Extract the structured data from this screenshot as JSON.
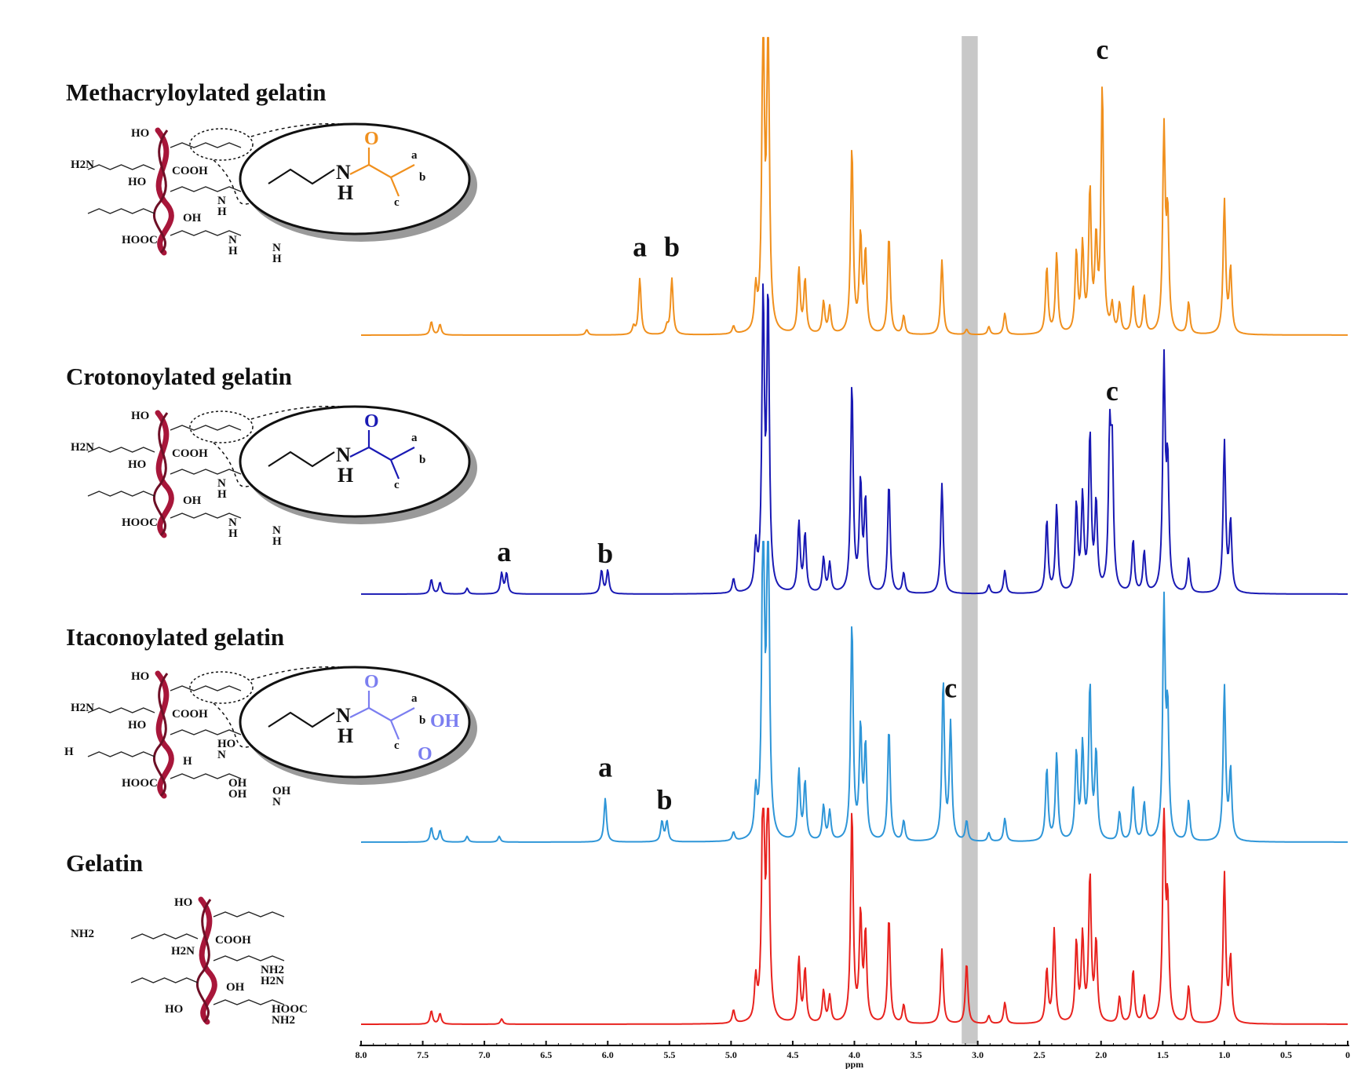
{
  "chart_data": {
    "type": "line",
    "title": "",
    "xlabel": "ppm",
    "ylabel": "",
    "x_reversed": true,
    "xlim": [
      8.0,
      0
    ],
    "ticks": [
      "8.0",
      "7.5",
      "7.0",
      "6.5",
      "6.0",
      "5.5",
      "5.0",
      "4.5",
      "4.0",
      "3.5",
      "3.0",
      "2.5",
      "2.0",
      "1.5",
      "1.0",
      "0.5",
      "0"
    ],
    "highlight_band_ppm": [
      3.0,
      3.13
    ],
    "highlight_color": "#c8c8c8",
    "series": [
      {
        "name": "Methacryloylated gelatin",
        "color": "#f0901e",
        "ring_label": "N-H amide with C=O, CH2=C(CH3)-",
        "peak_labels": [
          {
            "label": "a",
            "ppm": 5.74
          },
          {
            "label": "b",
            "ppm": 5.48
          },
          {
            "label": "c",
            "ppm": 1.99
          }
        ],
        "peaks": [
          {
            "ppm": 7.43,
            "h": 0.05
          },
          {
            "ppm": 7.36,
            "h": 0.04
          },
          {
            "ppm": 6.17,
            "h": 0.02
          },
          {
            "ppm": 5.79,
            "h": 0.03
          },
          {
            "ppm": 5.74,
            "h": 0.21
          },
          {
            "ppm": 5.52,
            "h": 0.03
          },
          {
            "ppm": 5.48,
            "h": 0.21
          },
          {
            "ppm": 4.98,
            "h": 0.03
          },
          {
            "ppm": 4.8,
            "h": 0.15
          },
          {
            "ppm": 4.74,
            "h": 1.2
          },
          {
            "ppm": 4.7,
            "h": 1.2
          },
          {
            "ppm": 4.45,
            "h": 0.24
          },
          {
            "ppm": 4.4,
            "h": 0.2
          },
          {
            "ppm": 4.25,
            "h": 0.12
          },
          {
            "ppm": 4.2,
            "h": 0.1
          },
          {
            "ppm": 4.02,
            "h": 0.7
          },
          {
            "ppm": 3.95,
            "h": 0.36
          },
          {
            "ppm": 3.91,
            "h": 0.3
          },
          {
            "ppm": 3.72,
            "h": 0.37
          },
          {
            "ppm": 3.6,
            "h": 0.07
          },
          {
            "ppm": 3.29,
            "h": 0.28
          },
          {
            "ppm": 3.09,
            "h": 0.02
          },
          {
            "ppm": 2.91,
            "h": 0.03
          },
          {
            "ppm": 2.78,
            "h": 0.08
          },
          {
            "ppm": 2.44,
            "h": 0.25
          },
          {
            "ppm": 2.36,
            "h": 0.3
          },
          {
            "ppm": 2.2,
            "h": 0.3
          },
          {
            "ppm": 2.15,
            "h": 0.32
          },
          {
            "ppm": 2.09,
            "h": 0.53
          },
          {
            "ppm": 2.04,
            "h": 0.33
          },
          {
            "ppm": 1.99,
            "h": 0.92
          },
          {
            "ppm": 1.91,
            "h": 0.1
          },
          {
            "ppm": 1.85,
            "h": 0.11
          },
          {
            "ppm": 1.74,
            "h": 0.18
          },
          {
            "ppm": 1.65,
            "h": 0.14
          },
          {
            "ppm": 1.49,
            "h": 0.75
          },
          {
            "ppm": 1.46,
            "h": 0.42
          },
          {
            "ppm": 1.29,
            "h": 0.12
          },
          {
            "ppm": 1.0,
            "h": 0.5
          },
          {
            "ppm": 0.95,
            "h": 0.24
          }
        ]
      },
      {
        "name": "Crotonoylated gelatin",
        "color": "#1a1ab4",
        "peak_labels": [
          {
            "label": "a",
            "ppm": 6.84
          },
          {
            "label": "b",
            "ppm": 6.02
          },
          {
            "label": "c",
            "ppm": 1.91
          }
        ],
        "peaks": [
          {
            "ppm": 7.43,
            "h": 0.05
          },
          {
            "ppm": 7.36,
            "h": 0.04
          },
          {
            "ppm": 7.14,
            "h": 0.02
          },
          {
            "ppm": 6.86,
            "h": 0.07
          },
          {
            "ppm": 6.82,
            "h": 0.07
          },
          {
            "ppm": 6.05,
            "h": 0.08
          },
          {
            "ppm": 6.0,
            "h": 0.08
          },
          {
            "ppm": 4.98,
            "h": 0.05
          },
          {
            "ppm": 4.8,
            "h": 0.15
          },
          {
            "ppm": 4.74,
            "h": 1.0
          },
          {
            "ppm": 4.7,
            "h": 1.0
          },
          {
            "ppm": 4.45,
            "h": 0.24
          },
          {
            "ppm": 4.4,
            "h": 0.2
          },
          {
            "ppm": 4.25,
            "h": 0.12
          },
          {
            "ppm": 4.2,
            "h": 0.1
          },
          {
            "ppm": 4.02,
            "h": 0.72
          },
          {
            "ppm": 3.95,
            "h": 0.37
          },
          {
            "ppm": 3.91,
            "h": 0.31
          },
          {
            "ppm": 3.72,
            "h": 0.38
          },
          {
            "ppm": 3.6,
            "h": 0.07
          },
          {
            "ppm": 3.29,
            "h": 0.38
          },
          {
            "ppm": 2.91,
            "h": 0.03
          },
          {
            "ppm": 2.78,
            "h": 0.08
          },
          {
            "ppm": 2.44,
            "h": 0.25
          },
          {
            "ppm": 2.36,
            "h": 0.3
          },
          {
            "ppm": 2.2,
            "h": 0.3
          },
          {
            "ppm": 2.15,
            "h": 0.32
          },
          {
            "ppm": 2.09,
            "h": 0.54
          },
          {
            "ppm": 2.04,
            "h": 0.3
          },
          {
            "ppm": 1.93,
            "h": 0.5
          },
          {
            "ppm": 1.91,
            "h": 0.45
          },
          {
            "ppm": 1.74,
            "h": 0.18
          },
          {
            "ppm": 1.65,
            "h": 0.14
          },
          {
            "ppm": 1.49,
            "h": 0.78
          },
          {
            "ppm": 1.46,
            "h": 0.42
          },
          {
            "ppm": 1.29,
            "h": 0.12
          },
          {
            "ppm": 1.0,
            "h": 0.52
          },
          {
            "ppm": 0.95,
            "h": 0.24
          }
        ]
      },
      {
        "name": "Itaconoylated gelatin",
        "color": "#2f96d8",
        "peak_labels": [
          {
            "label": "a",
            "ppm": 6.02
          },
          {
            "label": "b",
            "ppm": 5.54
          },
          {
            "label": "c",
            "ppm": 3.22
          }
        ],
        "peaks": [
          {
            "ppm": 7.43,
            "h": 0.05
          },
          {
            "ppm": 7.36,
            "h": 0.04
          },
          {
            "ppm": 7.14,
            "h": 0.02
          },
          {
            "ppm": 6.88,
            "h": 0.02
          },
          {
            "ppm": 6.02,
            "h": 0.15
          },
          {
            "ppm": 5.56,
            "h": 0.07
          },
          {
            "ppm": 5.52,
            "h": 0.07
          },
          {
            "ppm": 4.98,
            "h": 0.03
          },
          {
            "ppm": 4.8,
            "h": 0.15
          },
          {
            "ppm": 4.74,
            "h": 1.2
          },
          {
            "ppm": 4.7,
            "h": 1.2
          },
          {
            "ppm": 4.45,
            "h": 0.24
          },
          {
            "ppm": 4.4,
            "h": 0.2
          },
          {
            "ppm": 4.25,
            "h": 0.12
          },
          {
            "ppm": 4.2,
            "h": 0.1
          },
          {
            "ppm": 4.02,
            "h": 0.75
          },
          {
            "ppm": 3.95,
            "h": 0.38
          },
          {
            "ppm": 3.91,
            "h": 0.32
          },
          {
            "ppm": 3.72,
            "h": 0.39
          },
          {
            "ppm": 3.6,
            "h": 0.07
          },
          {
            "ppm": 3.28,
            "h": 0.55
          },
          {
            "ppm": 3.22,
            "h": 0.4
          },
          {
            "ppm": 3.09,
            "h": 0.07
          },
          {
            "ppm": 2.91,
            "h": 0.03
          },
          {
            "ppm": 2.78,
            "h": 0.08
          },
          {
            "ppm": 2.44,
            "h": 0.25
          },
          {
            "ppm": 2.36,
            "h": 0.3
          },
          {
            "ppm": 2.2,
            "h": 0.3
          },
          {
            "ppm": 2.15,
            "h": 0.32
          },
          {
            "ppm": 2.09,
            "h": 0.53
          },
          {
            "ppm": 2.04,
            "h": 0.3
          },
          {
            "ppm": 1.85,
            "h": 0.1
          },
          {
            "ppm": 1.74,
            "h": 0.19
          },
          {
            "ppm": 1.65,
            "h": 0.13
          },
          {
            "ppm": 1.49,
            "h": 0.8
          },
          {
            "ppm": 1.46,
            "h": 0.42
          },
          {
            "ppm": 1.29,
            "h": 0.14
          },
          {
            "ppm": 1.0,
            "h": 0.53
          },
          {
            "ppm": 0.95,
            "h": 0.24
          }
        ]
      },
      {
        "name": "Gelatin",
        "color": "#e8231f",
        "peak_labels": [],
        "peaks": [
          {
            "ppm": 7.43,
            "h": 0.05
          },
          {
            "ppm": 7.36,
            "h": 0.04
          },
          {
            "ppm": 6.86,
            "h": 0.02
          },
          {
            "ppm": 4.98,
            "h": 0.05
          },
          {
            "ppm": 4.8,
            "h": 0.15
          },
          {
            "ppm": 4.74,
            "h": 1.0
          },
          {
            "ppm": 4.7,
            "h": 1.0
          },
          {
            "ppm": 4.45,
            "h": 0.24
          },
          {
            "ppm": 4.4,
            "h": 0.2
          },
          {
            "ppm": 4.25,
            "h": 0.12
          },
          {
            "ppm": 4.2,
            "h": 0.1
          },
          {
            "ppm": 4.02,
            "h": 0.8
          },
          {
            "ppm": 3.95,
            "h": 0.4
          },
          {
            "ppm": 3.91,
            "h": 0.33
          },
          {
            "ppm": 3.72,
            "h": 0.4
          },
          {
            "ppm": 3.6,
            "h": 0.07
          },
          {
            "ppm": 3.29,
            "h": 0.28
          },
          {
            "ppm": 3.09,
            "h": 0.23
          },
          {
            "ppm": 2.91,
            "h": 0.03
          },
          {
            "ppm": 2.78,
            "h": 0.08
          },
          {
            "ppm": 2.44,
            "h": 0.2
          },
          {
            "ppm": 2.38,
            "h": 0.35
          },
          {
            "ppm": 2.2,
            "h": 0.3
          },
          {
            "ppm": 2.15,
            "h": 0.32
          },
          {
            "ppm": 2.09,
            "h": 0.55
          },
          {
            "ppm": 2.04,
            "h": 0.3
          },
          {
            "ppm": 1.85,
            "h": 0.1
          },
          {
            "ppm": 1.74,
            "h": 0.2
          },
          {
            "ppm": 1.65,
            "h": 0.1
          },
          {
            "ppm": 1.49,
            "h": 0.82
          },
          {
            "ppm": 1.46,
            "h": 0.42
          },
          {
            "ppm": 1.29,
            "h": 0.14
          },
          {
            "ppm": 1.0,
            "h": 0.56
          },
          {
            "ppm": 0.95,
            "h": 0.24
          }
        ]
      }
    ]
  },
  "structures": [
    {
      "name": "Methacryloylated gelatin",
      "color": "#f0901e",
      "labels": [
        "HO",
        "H2N",
        "HO",
        "COOH",
        "HOOC",
        "N",
        "H",
        "OH",
        "N",
        "H",
        "N",
        "H"
      ],
      "zoom_labels": [
        "O",
        "N",
        "H",
        "a",
        "b",
        "c"
      ]
    },
    {
      "name": "Crotonoylated gelatin",
      "color": "#1a1ab4",
      "labels": [
        "HO",
        "H2N",
        "HO",
        "COOH",
        "HOOC",
        "N",
        "H",
        "OH",
        "N",
        "H",
        "N",
        "H"
      ],
      "zoom_labels": [
        "O",
        "N",
        "H",
        "a",
        "b",
        "c"
      ]
    },
    {
      "name": "Itaconoylated gelatin",
      "color": "#7b7ef0",
      "labels": [
        "HO",
        "H2N",
        "HO",
        "COOH",
        "HOOC",
        "HO",
        "N",
        "H",
        "OH",
        "OH",
        "OH",
        "N",
        "H"
      ],
      "zoom_labels": [
        "O",
        "N",
        "H",
        "a",
        "b",
        "c",
        "OH",
        "O"
      ]
    },
    {
      "name": "Gelatin",
      "color": "#111111",
      "labels": [
        "HO",
        "NH2",
        "H2N",
        "COOH",
        "HO",
        "NH2",
        "H2N",
        "OH",
        "HOOC",
        "NH2"
      ]
    }
  ],
  "colors": {
    "helix": "#a8163a",
    "axis": "#111111"
  }
}
